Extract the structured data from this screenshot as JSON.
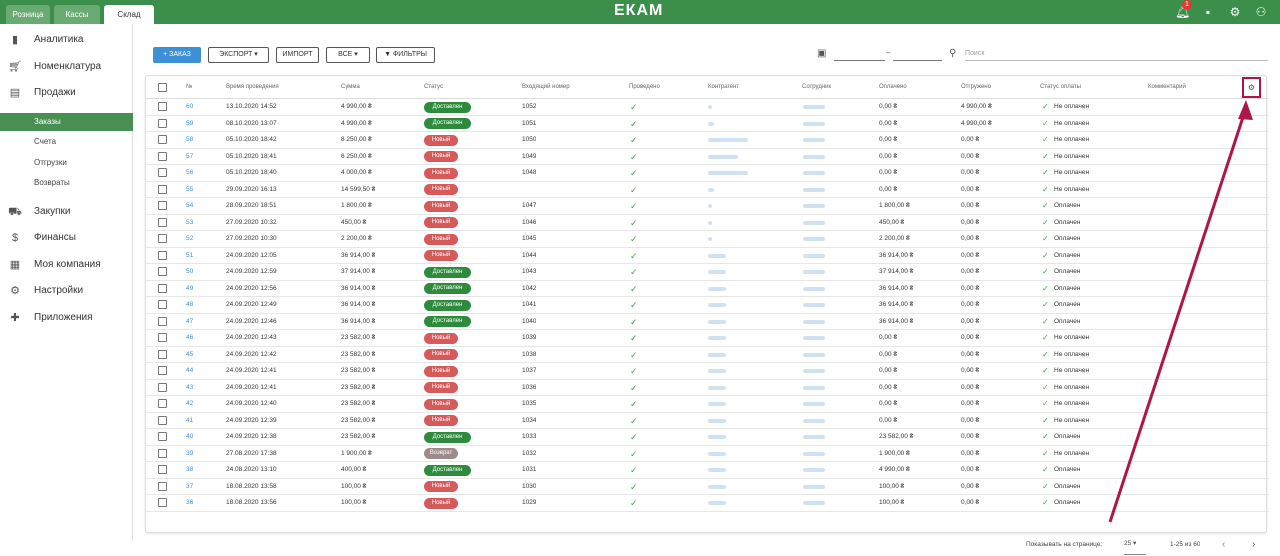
{
  "header": {
    "tabs": [
      "Розница",
      "Кассы",
      "Склад"
    ],
    "active_tab": 2,
    "logo": "ЕКАМ",
    "notification_count": "1"
  },
  "sidebar": {
    "items": [
      {
        "label": "Аналитика",
        "icon": "bar-chart-icon"
      },
      {
        "label": "Номенклатура",
        "icon": "cart-icon"
      },
      {
        "label": "Продажи",
        "icon": "register-icon"
      },
      {
        "label": "Закупки",
        "icon": "truck-icon"
      },
      {
        "label": "Финансы",
        "icon": "dollar-icon"
      },
      {
        "label": "Моя компания",
        "icon": "building-icon"
      },
      {
        "label": "Настройки",
        "icon": "gear-icon"
      },
      {
        "label": "Приложения",
        "icon": "puzzle-icon"
      }
    ],
    "subitems": [
      "Заказы",
      "Счета",
      "Отгрузки",
      "Возвраты"
    ],
    "active_subitem": 0
  },
  "toolbar": {
    "order_btn": "+ ЗАКАЗ",
    "export_btn": "ЭКСПОРТ",
    "import_btn": "ИМПОРТ",
    "all_btn": "ВСЕ",
    "filters_btn": "ФИЛЬТРЫ",
    "search_placeholder": "Поиск",
    "date_sep": "–"
  },
  "table": {
    "headers": [
      "№",
      "Время проведения",
      "Сумма",
      "Статус",
      "Входящий номер",
      "Проведено",
      "Контрагент",
      "Сотрудник",
      "Оплачено",
      "Отгружено",
      "Статус оплаты",
      "Комментарий"
    ],
    "rows": [
      {
        "num": "60",
        "date": "13.10.2020 14:52",
        "sum": "4 990,00 ₴",
        "status": "Доставлен",
        "in": "1052",
        "paid": "0,00 ₴",
        "shipped": "4 990,00 ₴",
        "pay": "Не оплачен"
      },
      {
        "num": "59",
        "date": "08.10.2020 13:07",
        "sum": "4 990,00 ₴",
        "status": "Доставлен",
        "in": "1051",
        "paid": "0,00 ₴",
        "shipped": "4 990,00 ₴",
        "pay": "Не оплачен"
      },
      {
        "num": "58",
        "date": "05.10.2020 18:42",
        "sum": "8 250,00 ₴",
        "status": "Новый",
        "in": "1050",
        "paid": "0,00 ₴",
        "shipped": "0,00 ₴",
        "pay": "Не оплачен"
      },
      {
        "num": "57",
        "date": "05.10.2020 18:41",
        "sum": "6 250,00 ₴",
        "status": "Новый",
        "in": "1049",
        "paid": "0,00 ₴",
        "shipped": "0,00 ₴",
        "pay": "Не оплачен"
      },
      {
        "num": "56",
        "date": "05.10.2020 18:40",
        "sum": "4 000,00 ₴",
        "status": "Новый",
        "in": "1048",
        "paid": "0,00 ₴",
        "shipped": "0,00 ₴",
        "pay": "Не оплачен"
      },
      {
        "num": "55",
        "date": "29.09.2020 16:13",
        "sum": "14 599,50 ₴",
        "status": "Новый",
        "in": "",
        "paid": "0,00 ₴",
        "shipped": "0,00 ₴",
        "pay": "Не оплачен"
      },
      {
        "num": "54",
        "date": "28.09.2020 18:51",
        "sum": "1 800,00 ₴",
        "status": "Новый",
        "in": "1047",
        "paid": "1 800,00 ₴",
        "shipped": "0,00 ₴",
        "pay": "Оплачен"
      },
      {
        "num": "53",
        "date": "27.09.2020 10:32",
        "sum": "450,00 ₴",
        "status": "Новый",
        "in": "1046",
        "paid": "450,00 ₴",
        "shipped": "0,00 ₴",
        "pay": "Оплачен"
      },
      {
        "num": "52",
        "date": "27.09.2020 10:30",
        "sum": "2 200,00 ₴",
        "status": "Новый",
        "in": "1045",
        "paid": "2 200,00 ₴",
        "shipped": "0,00 ₴",
        "pay": "Оплачен"
      },
      {
        "num": "51",
        "date": "24.09.2020 12:05",
        "sum": "36 914,00 ₴",
        "status": "Новый",
        "in": "1044",
        "paid": "36 914,00 ₴",
        "shipped": "0,00 ₴",
        "pay": "Оплачен"
      },
      {
        "num": "50",
        "date": "24.09.2020 12:59",
        "sum": "37 914,00 ₴",
        "status": "Доставлен",
        "in": "1043",
        "paid": "37 914,00 ₴",
        "shipped": "0,00 ₴",
        "pay": "Оплачен"
      },
      {
        "num": "49",
        "date": "24.09.2020 12:56",
        "sum": "36 914,00 ₴",
        "status": "Доставлен",
        "in": "1042",
        "paid": "36 914,00 ₴",
        "shipped": "0,00 ₴",
        "pay": "Оплачен"
      },
      {
        "num": "48",
        "date": "24.09.2020 12:49",
        "sum": "36 914,00 ₴",
        "status": "Доставлен",
        "in": "1041",
        "paid": "36 914,00 ₴",
        "shipped": "0,00 ₴",
        "pay": "Оплачен"
      },
      {
        "num": "47",
        "date": "24.09.2020 12:46",
        "sum": "36 914,00 ₴",
        "status": "Доставлен",
        "in": "1040",
        "paid": "36 914,00 ₴",
        "shipped": "0,00 ₴",
        "pay": "Оплачен"
      },
      {
        "num": "46",
        "date": "24.09.2020 12:43",
        "sum": "23 582,00 ₴",
        "status": "Новый",
        "in": "1039",
        "paid": "0,00 ₴",
        "shipped": "0,00 ₴",
        "pay": "Не оплачен"
      },
      {
        "num": "45",
        "date": "24.09.2020 12:42",
        "sum": "23 582,00 ₴",
        "status": "Новый",
        "in": "1038",
        "paid": "0,00 ₴",
        "shipped": "0,00 ₴",
        "pay": "Не оплачен"
      },
      {
        "num": "44",
        "date": "24.09.2020 12:41",
        "sum": "23 582,00 ₴",
        "status": "Новый",
        "in": "1037",
        "paid": "0,00 ₴",
        "shipped": "0,00 ₴",
        "pay": "Не оплачен"
      },
      {
        "num": "43",
        "date": "24.09.2020 12:41",
        "sum": "23 582,00 ₴",
        "status": "Новый",
        "in": "1036",
        "paid": "0,00 ₴",
        "shipped": "0,00 ₴",
        "pay": "Не оплачен"
      },
      {
        "num": "42",
        "date": "24.09.2020 12:40",
        "sum": "23 582,00 ₴",
        "status": "Новый",
        "in": "1035",
        "paid": "0,00 ₴",
        "shipped": "0,00 ₴",
        "pay": "Не оплачен"
      },
      {
        "num": "41",
        "date": "24.09.2020 12:39",
        "sum": "23 582,00 ₴",
        "status": "Новый",
        "in": "1034",
        "paid": "0,00 ₴",
        "shipped": "0,00 ₴",
        "pay": "Не оплачен"
      },
      {
        "num": "40",
        "date": "24.09.2020 12:38",
        "sum": "23 582,00 ₴",
        "status": "Доставлен",
        "in": "1033",
        "paid": "23 582,00 ₴",
        "shipped": "0,00 ₴",
        "pay": "Оплачен"
      },
      {
        "num": "39",
        "date": "27.08.2020 17:38",
        "sum": "1 900,00 ₴",
        "status": "Возврат",
        "in": "1032",
        "paid": "1 900,00 ₴",
        "shipped": "0,00 ₴",
        "pay": "Не оплачен"
      },
      {
        "num": "38",
        "date": "24.08.2020 13:10",
        "sum": "400,00 ₴",
        "status": "Доставлен",
        "in": "1031",
        "paid": "4 990,00 ₴",
        "shipped": "0,00 ₴",
        "pay": "Оплачен"
      },
      {
        "num": "37",
        "date": "18.08.2020 13:58",
        "sum": "100,00 ₴",
        "status": "Новый",
        "in": "1030",
        "paid": "100,00 ₴",
        "shipped": "0,00 ₴",
        "pay": "Оплачен"
      },
      {
        "num": "36",
        "date": "18.08.2020 13:56",
        "sum": "100,00 ₴",
        "status": "Новый",
        "in": "1029",
        "paid": "100,00 ₴",
        "shipped": "0,00 ₴",
        "pay": "Оплачен"
      }
    ]
  },
  "pagination": {
    "per_page_label": "Показывать на странице:",
    "per_page": "25",
    "range": "1-25 из 60"
  },
  "colors": {
    "header_green": "#3c8f4a",
    "delivered": "#2e8b3e",
    "new": "#d65a5a",
    "return": "#9e8a8a",
    "link": "#3d8fd6",
    "annotation": "#b01548"
  }
}
